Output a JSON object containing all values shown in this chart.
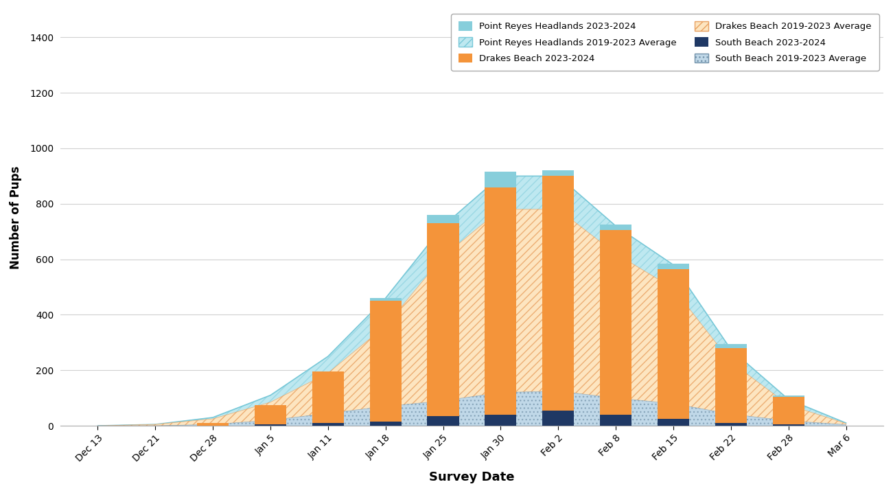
{
  "x_labels": [
    "Dec 13",
    "Dec 21",
    "Dec 28",
    "Jan 5",
    "Jan 11",
    "Jan 18",
    "Jan 25",
    "Jan 30",
    "Feb 2",
    "Feb 8",
    "Feb 15",
    "Feb 22",
    "Feb 28",
    "Mar 6"
  ],
  "bar_dates": [
    "Dec 28",
    "Jan 5",
    "Jan 11",
    "Jan 18",
    "Jan 25",
    "Jan 30",
    "Feb 2",
    "Feb 8",
    "Feb 15",
    "Feb 22",
    "Feb 28"
  ],
  "bar_headlands": [
    0,
    0,
    0,
    10,
    30,
    55,
    20,
    20,
    20,
    15,
    5
  ],
  "bar_drakes": [
    10,
    70,
    185,
    435,
    695,
    820,
    845,
    665,
    540,
    270,
    100
  ],
  "bar_south": [
    0,
    5,
    10,
    15,
    35,
    40,
    55,
    40,
    25,
    10,
    5
  ],
  "area_total": [
    0,
    5,
    30,
    110,
    250,
    460,
    720,
    900,
    900,
    720,
    580,
    275,
    95,
    10
  ],
  "area_drakes": [
    0,
    5,
    25,
    85,
    190,
    360,
    610,
    780,
    780,
    620,
    495,
    230,
    75,
    8
  ],
  "area_south": [
    0,
    0,
    5,
    20,
    45,
    70,
    90,
    120,
    125,
    100,
    80,
    42,
    18,
    4
  ],
  "color_headlands_bar": "#87CEDB",
  "color_drakes_bar": "#F4943A",
  "color_south_bar": "#1F3864",
  "color_area_total_fill": "#BEE8F0",
  "color_area_total_line": "#78C8D8",
  "color_area_drakes_fill": "#FDE5C0",
  "color_area_drakes_hatch": "#E8A060",
  "color_area_south_fill": "#C0D8E8",
  "color_area_south_hatch": "#7090A8",
  "hatch_drakes": "///",
  "hatch_south": "...",
  "hatch_total": "///",
  "title_x": "Survey Date",
  "title_y": "Number of Pups",
  "ylim": [
    0,
    1500
  ],
  "yticks": [
    0,
    200,
    400,
    600,
    800,
    1000,
    1200,
    1400
  ],
  "bar_width": 0.55,
  "legend_labels_bar": [
    "Point Reyes Headlands 2023-2024",
    "Drakes Beach 2023-2024",
    "South Beach 2023-2024"
  ],
  "legend_labels_area": [
    "Point Reyes Headlands 2019-2023 Average",
    "Drakes Beach 2019-2023 Average",
    "South Beach 2019-2023 Average"
  ],
  "background_color": "#FFFFFF",
  "grid_color": "#D0D0D0"
}
